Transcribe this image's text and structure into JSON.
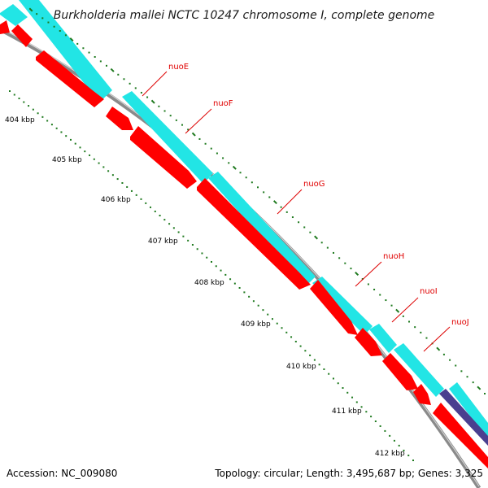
{
  "title": "Burkholderia mallei NCTC 10247 chromosome I, complete genome",
  "accession": "Accession: NC_009080",
  "summary": "Topology: circular; Length: 3,495,687 bp; Genes: 3,325",
  "colors": {
    "forward_feature": "#22e5e5",
    "reverse_gene": "#ff0000",
    "other_feature": "#4a3f8f",
    "backbone": "#8a8a8a",
    "tick": "#1f7a1f",
    "label_line": "#dd0000",
    "title_text": "#1a1a1a"
  },
  "genes": [
    {
      "name": "nuoE"
    },
    {
      "name": "nuoF"
    },
    {
      "name": "nuoG"
    },
    {
      "name": "nuoH"
    },
    {
      "name": "nuoI"
    },
    {
      "name": "nuoJ"
    }
  ],
  "scale_labels": [
    "404 kbp",
    "405 kbp",
    "406 kbp",
    "407 kbp",
    "408 kbp",
    "409 kbp",
    "410 kbp",
    "411 kbp",
    "412 kbp"
  ]
}
